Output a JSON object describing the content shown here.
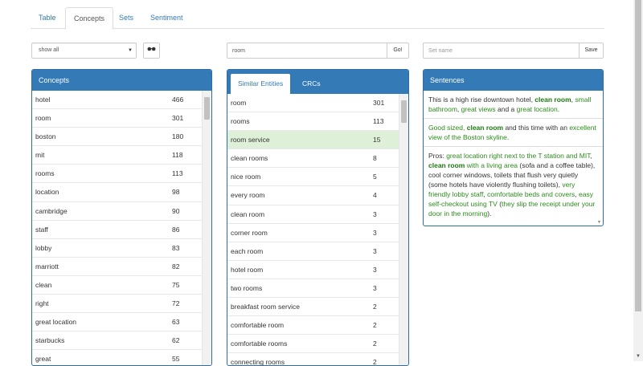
{
  "tabs": [
    {
      "label": "Table"
    },
    {
      "label": "Concepts"
    },
    {
      "label": "Sets"
    },
    {
      "label": "Sentiment"
    }
  ],
  "filter": {
    "selected": "show all"
  },
  "search": {
    "value": "room",
    "go_label": "Go!"
  },
  "set": {
    "placeholder": "Set name",
    "save_label": "Save"
  },
  "concepts": {
    "title": "Concepts",
    "items": [
      {
        "name": "hotel",
        "count": "466"
      },
      {
        "name": "room",
        "count": "301"
      },
      {
        "name": "boston",
        "count": "180"
      },
      {
        "name": "mit",
        "count": "118"
      },
      {
        "name": "rooms",
        "count": "113"
      },
      {
        "name": "location",
        "count": "98"
      },
      {
        "name": "cambridge",
        "count": "90"
      },
      {
        "name": "staff",
        "count": "86"
      },
      {
        "name": "lobby",
        "count": "83"
      },
      {
        "name": "marriott",
        "count": "82"
      },
      {
        "name": "clean",
        "count": "75"
      },
      {
        "name": "right",
        "count": "72"
      },
      {
        "name": "great location",
        "count": "63"
      },
      {
        "name": "starbucks",
        "count": "62"
      },
      {
        "name": "great",
        "count": "55"
      }
    ]
  },
  "entities": {
    "tabs": [
      {
        "label": "Similar Entities"
      },
      {
        "label": "CRCs"
      }
    ],
    "items": [
      {
        "name": "room",
        "count": "301"
      },
      {
        "name": "rooms",
        "count": "113"
      },
      {
        "name": "room service",
        "count": "15"
      },
      {
        "name": "clean rooms",
        "count": "8"
      },
      {
        "name": "nice room",
        "count": "5"
      },
      {
        "name": "every room",
        "count": "4"
      },
      {
        "name": "clean room",
        "count": "3"
      },
      {
        "name": "corner room",
        "count": "3"
      },
      {
        "name": "each room",
        "count": "3"
      },
      {
        "name": "hotel room",
        "count": "3"
      },
      {
        "name": "two rooms",
        "count": "3"
      },
      {
        "name": "breakfast room service",
        "count": "2"
      },
      {
        "name": "comfortable room",
        "count": "2"
      },
      {
        "name": "comfortable rooms",
        "count": "2"
      },
      {
        "name": "connecting rooms",
        "count": "2"
      }
    ]
  },
  "sentences": {
    "title": "Sentences",
    "s1": {
      "t1": "This is a high rise downtown hotel, ",
      "b1": "clean room",
      "t2": ", ",
      "g1": "small bathroom",
      "t3": ", ",
      "g2": "great views",
      "t4": " and a ",
      "g3": "great location",
      "t5": "."
    },
    "s2": {
      "g1": "Good sized, ",
      "b1": "clean room",
      "t1": " and this time with an ",
      "g2": "excellent view of the Boston skyline",
      "t2": "."
    },
    "s3": {
      "t1": "Pros: ",
      "g1": "great location right next to the T station and MIT",
      "t2": ", ",
      "b1": "clean room",
      "g2": " with a living area",
      "t3": " (sofa and a coffee table), cool corner windows, toilets that flush very quietly (some hotels have violently flushing toilets), ",
      "g3": "very friendly lobby staff",
      "t4": ", ",
      "g4": "comfortable beds and covers",
      "t5": ", ",
      "g5": "easy self-checkout using TV",
      "t6": " (",
      "g6": "they slip the receipt under your door in the morning",
      "t7": ")."
    }
  }
}
